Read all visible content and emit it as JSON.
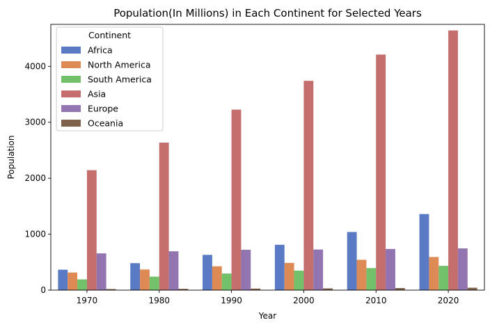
{
  "chart_data": {
    "type": "bar",
    "title": "Population(In Millions) in Each Continent for Selected Years",
    "xlabel": "Year",
    "ylabel": "Population",
    "categories": [
      "1970",
      "1980",
      "1990",
      "2000",
      "2010",
      "2020"
    ],
    "ylim": [
      0,
      4750
    ],
    "yticks": [
      0,
      1000,
      2000,
      3000,
      4000
    ],
    "grid": false,
    "legend": {
      "title": "Continent",
      "placement": "top-left"
    },
    "series": [
      {
        "name": "Africa",
        "color": "#5a7ac4",
        "values": [
          365,
          482,
          630,
          811,
          1039,
          1360
        ]
      },
      {
        "name": "North America",
        "color": "#de8a55",
        "values": [
          315,
          369,
          426,
          486,
          542,
          592
        ]
      },
      {
        "name": "South America",
        "color": "#72c06a",
        "values": [
          192,
          241,
          297,
          349,
          394,
          434
        ]
      },
      {
        "name": "Asia",
        "color": "#c46e6e",
        "values": [
          2144,
          2636,
          3226,
          3741,
          4210,
          4641
        ]
      },
      {
        "name": "Europe",
        "color": "#9274b0",
        "values": [
          657,
          694,
          721,
          726,
          736,
          746
        ]
      },
      {
        "name": "Oceania",
        "color": "#80624c",
        "values": [
          19,
          23,
          27,
          31,
          37,
          43
        ]
      }
    ]
  }
}
